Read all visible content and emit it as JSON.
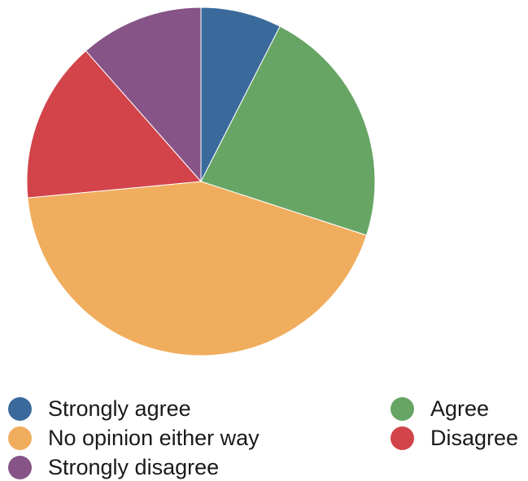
{
  "chart_data": {
    "type": "pie",
    "categories": [
      "Strongly agree",
      "Agree",
      "No opinion either way",
      "Disagree",
      "Strongly disagree"
    ],
    "values": [
      7.5,
      22.5,
      43.5,
      15,
      11.5
    ],
    "colors": [
      "#3a6a9c",
      "#67a565",
      "#f0ad5e",
      "#d2444a",
      "#875487"
    ],
    "start_angle": "12 o'clock",
    "direction": "clockwise",
    "legend_position": "bottom"
  }
}
